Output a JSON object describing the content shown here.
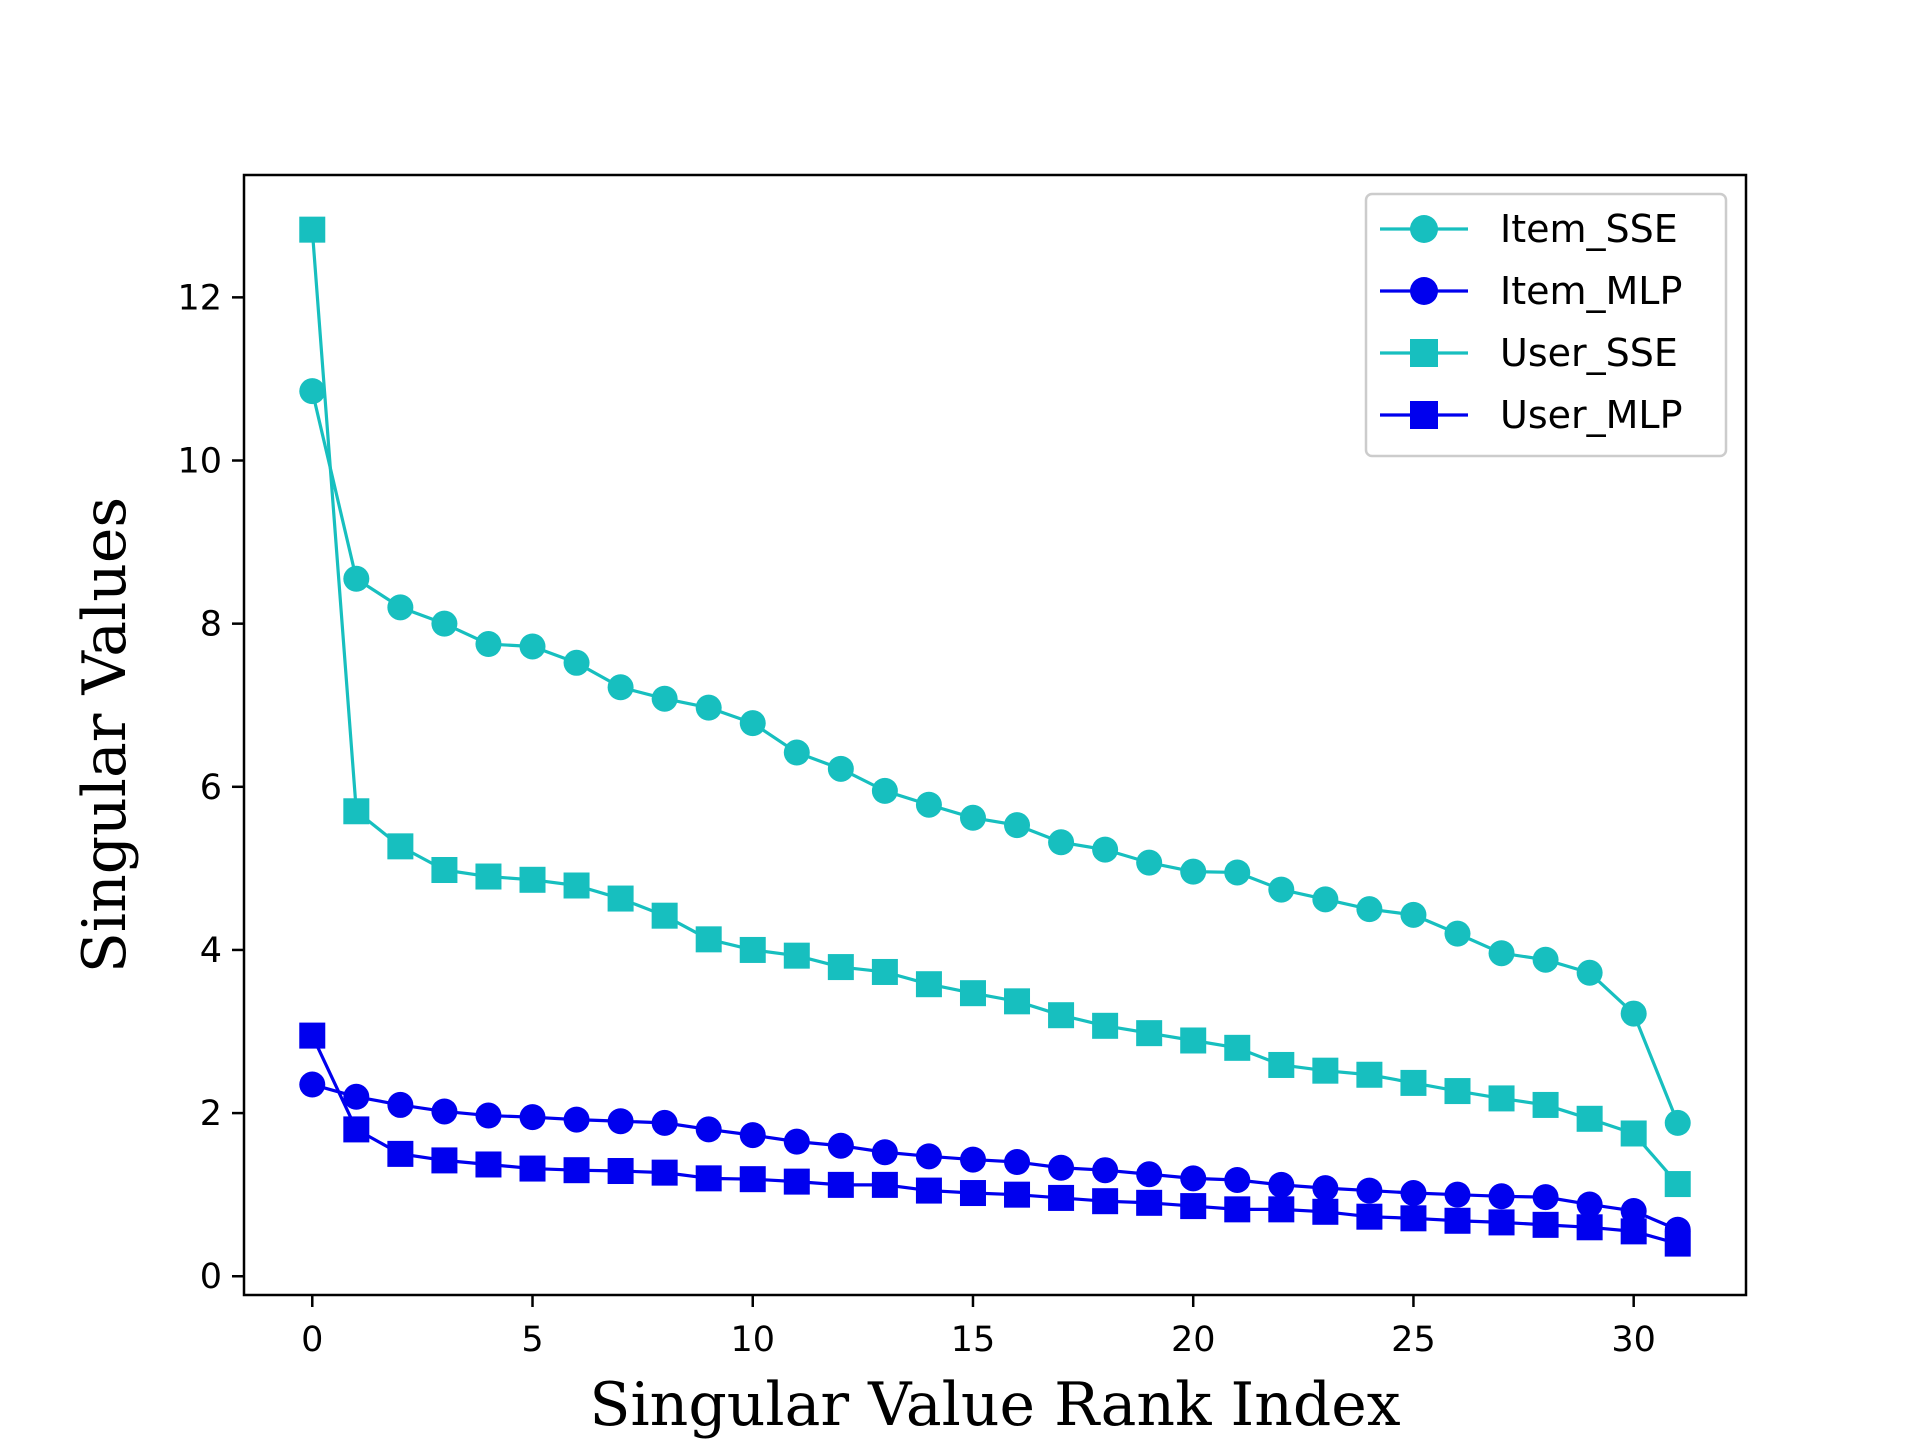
{
  "chart_data": {
    "type": "line",
    "title": "",
    "xlabel": "Singular Value Rank Index",
    "ylabel": "Singular Values",
    "xlim": [
      -1.55,
      32.55
    ],
    "ylim": [
      -0.23,
      13.5
    ],
    "xticks": [
      0,
      5,
      10,
      15,
      20,
      25,
      30
    ],
    "yticks": [
      0,
      2,
      4,
      6,
      8,
      10,
      12
    ],
    "grid": false,
    "legend_position": "top-right",
    "x": [
      0,
      1,
      2,
      3,
      4,
      5,
      6,
      7,
      8,
      9,
      10,
      11,
      12,
      13,
      14,
      15,
      16,
      17,
      18,
      19,
      20,
      21,
      22,
      23,
      24,
      25,
      26,
      27,
      28,
      29,
      30,
      31
    ],
    "series": [
      {
        "name": "Item_SSE",
        "color": "#17bfbf",
        "marker": "circle",
        "values": [
          10.85,
          8.55,
          8.2,
          8.0,
          7.75,
          7.72,
          7.52,
          7.22,
          7.08,
          6.97,
          6.78,
          6.42,
          6.22,
          5.95,
          5.78,
          5.62,
          5.53,
          5.32,
          5.23,
          5.07,
          4.96,
          4.95,
          4.74,
          4.62,
          4.5,
          4.43,
          4.2,
          3.96,
          3.88,
          3.72,
          3.22,
          1.88
        ]
      },
      {
        "name": "Item_MLP",
        "color": "#0000ee",
        "marker": "circle",
        "values": [
          2.35,
          2.2,
          2.1,
          2.02,
          1.97,
          1.95,
          1.92,
          1.9,
          1.88,
          1.8,
          1.73,
          1.65,
          1.6,
          1.52,
          1.47,
          1.43,
          1.4,
          1.33,
          1.3,
          1.25,
          1.2,
          1.18,
          1.12,
          1.08,
          1.05,
          1.02,
          1.0,
          0.98,
          0.97,
          0.88,
          0.8,
          0.57
        ]
      },
      {
        "name": "User_SSE",
        "color": "#17bfbf",
        "marker": "square",
        "values": [
          12.83,
          5.7,
          5.27,
          4.98,
          4.9,
          4.86,
          4.79,
          4.63,
          4.42,
          4.13,
          4.0,
          3.93,
          3.79,
          3.73,
          3.58,
          3.47,
          3.37,
          3.2,
          3.07,
          2.98,
          2.89,
          2.8,
          2.59,
          2.52,
          2.47,
          2.37,
          2.27,
          2.18,
          2.1,
          1.93,
          1.75,
          1.13
        ]
      },
      {
        "name": "User_MLP",
        "color": "#0000ee",
        "marker": "square",
        "values": [
          2.95,
          1.8,
          1.5,
          1.42,
          1.37,
          1.32,
          1.3,
          1.29,
          1.27,
          1.2,
          1.19,
          1.16,
          1.12,
          1.12,
          1.05,
          1.02,
          1.0,
          0.96,
          0.92,
          0.9,
          0.86,
          0.82,
          0.82,
          0.79,
          0.73,
          0.71,
          0.68,
          0.66,
          0.63,
          0.6,
          0.55,
          0.4
        ]
      }
    ]
  }
}
